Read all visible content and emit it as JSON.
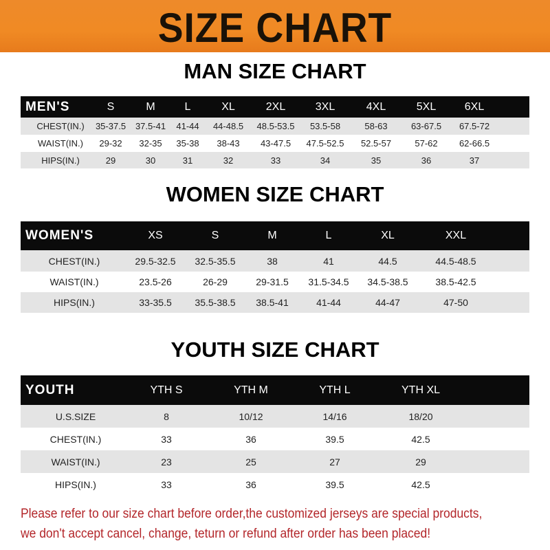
{
  "banner": {
    "title": "SIZE CHART",
    "color": "#f08a24"
  },
  "men": {
    "title": "MAN SIZE CHART",
    "headers": [
      "MEN'S",
      "S",
      "M",
      "L",
      "XL",
      "2XL",
      "3XL",
      "4XL",
      "5XL",
      "6XL"
    ],
    "rows": [
      [
        "CHEST(IN.)",
        "35-37.5",
        "37.5-41",
        "41-44",
        "44-48.5",
        "48.5-53.5",
        "53.5-58",
        "58-63",
        "63-67.5",
        "67.5-72"
      ],
      [
        "WAIST(IN.)",
        "29-32",
        "32-35",
        "35-38",
        "38-43",
        "43-47.5",
        "47.5-52.5",
        "52.5-57",
        "57-62",
        "62-66.5"
      ],
      [
        "HIPS(IN.)",
        "29",
        "30",
        "31",
        "32",
        "33",
        "34",
        "35",
        "36",
        "37"
      ]
    ]
  },
  "women": {
    "title": "WOMEN SIZE CHART",
    "headers": [
      "WOMEN'S",
      "XS",
      "S",
      "M",
      "L",
      "XL",
      "XXL"
    ],
    "rows": [
      [
        "CHEST(IN.)",
        "29.5-32.5",
        "32.5-35.5",
        "38",
        "41",
        "44.5",
        "44.5-48.5"
      ],
      [
        "WAIST(IN.)",
        "23.5-26",
        "26-29",
        "29-31.5",
        "31.5-34.5",
        "34.5-38.5",
        "38.5-42.5"
      ],
      [
        "HIPS(IN.)",
        "33-35.5",
        "35.5-38.5",
        "38.5-41",
        "41-44",
        "44-47",
        "47-50"
      ]
    ]
  },
  "youth": {
    "title": "YOUTH SIZE CHART",
    "headers": [
      "YOUTH",
      "YTH S",
      "YTH M",
      "YTH L",
      "YTH XL"
    ],
    "rows": [
      [
        "U.S.SIZE",
        "8",
        "10/12",
        "14/16",
        "18/20"
      ],
      [
        "CHEST(IN.)",
        "33",
        "36",
        "39.5",
        "42.5"
      ],
      [
        "WAIST(IN.)",
        "23",
        "25",
        "27",
        "29"
      ],
      [
        "HIPS(IN.)",
        "33",
        "36",
        "39.5",
        "42.5"
      ]
    ]
  },
  "footer": {
    "line1": "Please refer to our size chart before order,the customized jerseys are special products,",
    "line2": "we don't accept cancel, change, teturn or refund after order has been placed!",
    "color": "#b3262a"
  }
}
